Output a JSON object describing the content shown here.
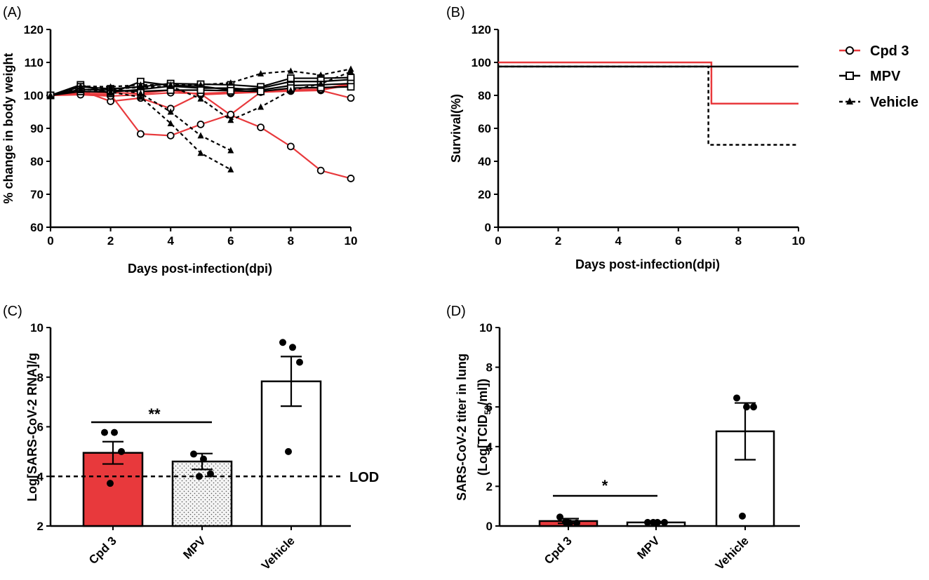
{
  "chart_data": [
    {
      "panel": "(A)",
      "type": "line",
      "xlabel": "Days post-infection(dpi)",
      "ylabel": "% change in body weight",
      "xlim": [
        0,
        10
      ],
      "ylim": [
        60,
        120
      ],
      "xticks": [
        0,
        2,
        4,
        6,
        8,
        10
      ],
      "yticks": [
        60,
        70,
        80,
        90,
        100,
        110,
        120
      ],
      "grid": false,
      "series": [
        {
          "group": "Cpd 3",
          "color": "#e8393c",
          "marker": "circle",
          "dash": false,
          "x": [
            0,
            1,
            2,
            3,
            4,
            5,
            6,
            7,
            8,
            9,
            10
          ],
          "y": [
            100,
            101.5,
            98.2,
            99.2,
            96,
            100.5,
            94,
            90.3,
            84.5,
            77.2,
            74.8
          ]
        },
        {
          "group": "Cpd 3",
          "color": "#e8393c",
          "marker": "circle",
          "dash": false,
          "x": [
            0,
            1,
            2,
            3,
            4,
            5,
            6,
            7,
            8,
            9,
            10
          ],
          "y": [
            100,
            100.5,
            100.3,
            88.3,
            87.8,
            91.2,
            94.2,
            101,
            101.3,
            101.5,
            99.2
          ]
        },
        {
          "group": "Cpd 3",
          "color": "#e8393c",
          "marker": "circle",
          "dash": false,
          "x": [
            0,
            1,
            2,
            3,
            4,
            5,
            6,
            7,
            8,
            9,
            10
          ],
          "y": [
            100,
            101,
            100.8,
            100.6,
            101.6,
            100.2,
            100.6,
            101,
            101.4,
            101.6,
            103.2
          ]
        },
        {
          "group": "Cpd 3",
          "color": "#e8393c",
          "marker": "circle",
          "dash": false,
          "x": [
            0,
            1,
            2,
            3,
            4,
            5,
            6,
            7,
            8,
            9,
            10
          ],
          "y": [
            100,
            100.2,
            99.8,
            100.2,
            100.8,
            100.6,
            100.9,
            101.2,
            101.6,
            101.9,
            103.6
          ]
        },
        {
          "group": "MPV",
          "color": "#000000",
          "marker": "square",
          "dash": false,
          "x": [
            0,
            1,
            2,
            3,
            4,
            5,
            6,
            7,
            8,
            9,
            10
          ],
          "y": [
            100,
            103.2,
            100.6,
            104.2,
            103,
            102.8,
            101.6,
            102.2,
            104.2,
            104.2,
            104.8
          ]
        },
        {
          "group": "MPV",
          "color": "#000000",
          "marker": "square",
          "dash": false,
          "x": [
            0,
            1,
            2,
            3,
            4,
            5,
            6,
            7,
            8,
            9,
            10
          ],
          "y": [
            100,
            102.6,
            102,
            102.6,
            103.6,
            103.4,
            103.2,
            102.6,
            105.2,
            105.2,
            105.4
          ]
        },
        {
          "group": "MPV",
          "color": "#000000",
          "marker": "square",
          "dash": false,
          "x": [
            0,
            1,
            2,
            3,
            4,
            5,
            6,
            7,
            8,
            9,
            10
          ],
          "y": [
            100,
            101.2,
            101,
            101.8,
            102.8,
            102.2,
            102.2,
            101.6,
            103,
            103.2,
            103.6
          ]
        },
        {
          "group": "MPV",
          "color": "#000000",
          "marker": "square",
          "dash": false,
          "x": [
            0,
            1,
            2,
            3,
            4,
            5,
            6,
            7,
            8,
            9,
            10
          ],
          "y": [
            100,
            101.8,
            101.6,
            101.2,
            101.6,
            101.6,
            101.4,
            101.2,
            102.2,
            102.4,
            102.6
          ]
        },
        {
          "group": "Vehicle",
          "color": "#000000",
          "marker": "triangle",
          "dash": true,
          "x": [
            0,
            1,
            2,
            3,
            4,
            5,
            6
          ],
          "y": [
            100,
            102,
            101,
            99.5,
            91.5,
            82.5,
            77.5
          ]
        },
        {
          "group": "Vehicle",
          "color": "#000000",
          "marker": "triangle",
          "dash": true,
          "x": [
            0,
            1,
            2,
            3,
            4,
            5,
            6
          ],
          "y": [
            100,
            102.6,
            102,
            100.6,
            95,
            87.8,
            83.3
          ]
        },
        {
          "group": "Vehicle",
          "color": "#000000",
          "marker": "triangle",
          "dash": true,
          "x": [
            0,
            1,
            2,
            3,
            4,
            5,
            6,
            7,
            8,
            9,
            10
          ],
          "y": [
            100,
            102.8,
            102.6,
            103.2,
            103.2,
            103.2,
            103.8,
            106.6,
            107.4,
            106.2,
            108
          ]
        },
        {
          "group": "Vehicle",
          "color": "#000000",
          "marker": "triangle",
          "dash": true,
          "x": [
            0,
            1,
            2,
            3,
            4,
            5,
            6,
            7,
            8,
            9,
            10
          ],
          "y": [
            100,
            101.6,
            102,
            102.4,
            102.8,
            99,
            92.5,
            96.5,
            101.5,
            103.5,
            107.2
          ]
        }
      ]
    },
    {
      "panel": "(B)",
      "type": "line",
      "subtype": "survival-step",
      "xlabel": "Days post-infection(dpi)",
      "ylabel": "Survival(%)",
      "xlim": [
        0,
        10
      ],
      "ylim": [
        0,
        120
      ],
      "xticks": [
        0,
        2,
        4,
        6,
        8,
        10
      ],
      "yticks": [
        0,
        20,
        40,
        60,
        80,
        100,
        120
      ],
      "grid": false,
      "legend_position": "right",
      "series": [
        {
          "name": "Cpd 3",
          "color": "#e8393c",
          "marker": "circle",
          "dash": false,
          "x": [
            0,
            7.1,
            7.1,
            10
          ],
          "y": [
            100,
            100,
            75,
            75
          ]
        },
        {
          "name": "MPV",
          "color": "#000000",
          "marker": "square",
          "dash": false,
          "x": [
            0,
            10
          ],
          "y": [
            97.5,
            97.5
          ]
        },
        {
          "name": "Vehicle",
          "color": "#000000",
          "marker": "triangle",
          "dash": true,
          "x": [
            0,
            7,
            7,
            10
          ],
          "y": [
            97.5,
            97.5,
            50,
            50
          ]
        }
      ]
    },
    {
      "panel": "(C)",
      "type": "bar",
      "ylabel": "Log[SARS-CoV-2 RNA]/g",
      "ylim": [
        2,
        10
      ],
      "yticks": [
        2,
        4,
        6,
        8,
        10
      ],
      "categories": [
        "Cpd 3",
        "MPV",
        "Vehicle"
      ],
      "values": [
        4.95,
        4.6,
        7.83
      ],
      "sem": [
        0.45,
        0.32,
        1.0
      ],
      "points": [
        [
          5.77,
          5.77,
          5.0,
          3.72
        ],
        [
          4.9,
          4.7,
          4.1,
          4.0
        ],
        [
          9.4,
          9.2,
          8.6,
          5.0
        ]
      ],
      "bar_colors": [
        "#e8393c",
        "#f2f2f2",
        "#ffffff"
      ],
      "reference_line": {
        "y": 4,
        "label": "LOD"
      },
      "significance": {
        "from": "Cpd 3",
        "to": "MPV",
        "label": "**"
      }
    },
    {
      "panel": "(D)",
      "type": "bar",
      "ylabel_line1": "SARS-CoV-2 titer in lung",
      "ylabel_line2_pre": "(Log[TCID",
      "ylabel_line2_sub": "50",
      "ylabel_line2_post": "/ml])",
      "ylim": [
        0,
        10
      ],
      "yticks": [
        0,
        2,
        4,
        6,
        8,
        10
      ],
      "categories": [
        "Cpd 3",
        "MPV",
        "Vehicle"
      ],
      "values": [
        0.25,
        0.18,
        4.77
      ],
      "sem": [
        0.12,
        0.04,
        1.43
      ],
      "points": [
        [
          0.45,
          0.15,
          0.15,
          0.2
        ],
        [
          0.18,
          0.18,
          0.18,
          0.18
        ],
        [
          6.45,
          6.0,
          6.0,
          0.5
        ]
      ],
      "bar_colors": [
        "#e8393c",
        "#ffffff",
        "#ffffff"
      ],
      "significance": {
        "from": "Cpd 3",
        "to": "MPV",
        "label": "*"
      }
    }
  ]
}
